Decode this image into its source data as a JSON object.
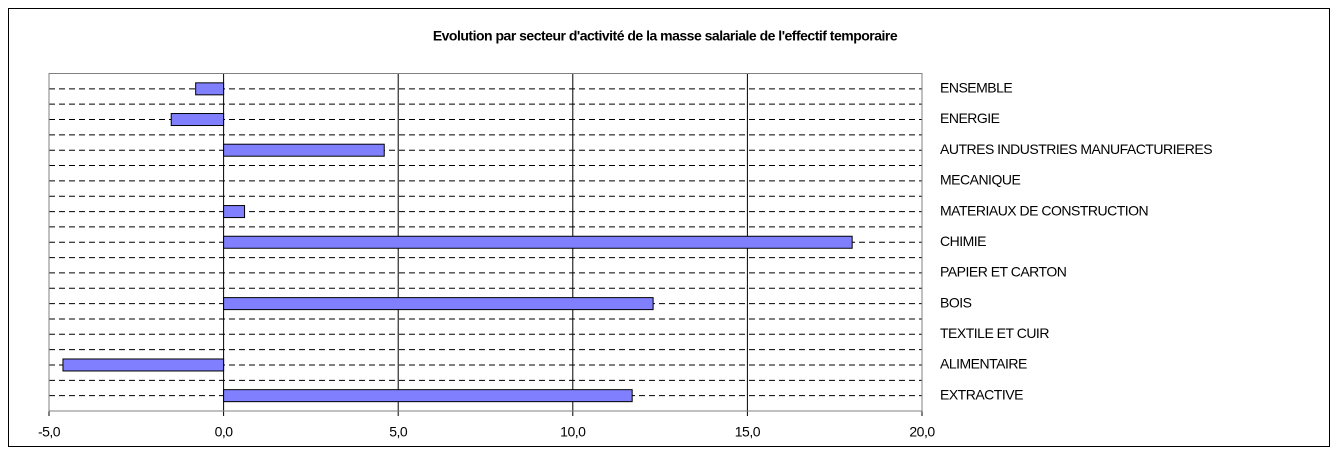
{
  "chart_data": {
    "type": "barh",
    "title": "Evolution par secteur d'activité de la masse salariale de l'effectif temporaire",
    "categories": [
      "ENSEMBLE",
      "ENERGIE",
      "AUTRES INDUSTRIES MANUFACTURIERES",
      "MECANIQUE",
      "MATERIAUX DE CONSTRUCTION",
      "CHIMIE",
      "PAPIER ET CARTON",
      "BOIS",
      "TEXTILE ET CUIR",
      "ALIMENTAIRE",
      "EXTRACTIVE"
    ],
    "values": [
      -0.8,
      -1.5,
      4.6,
      null,
      0.6,
      18.0,
      null,
      12.3,
      null,
      -4.6,
      11.7
    ],
    "color": "#8080ff",
    "xlim": [
      -5,
      20
    ],
    "xticks": [
      {
        "value": -5,
        "label": "-5,0"
      },
      {
        "value": 0,
        "label": "0,0"
      },
      {
        "value": 5,
        "label": "5,0"
      },
      {
        "value": 10,
        "label": "10,0"
      },
      {
        "value": 15,
        "label": "15,0"
      },
      {
        "value": 20,
        "label": "20,0"
      }
    ],
    "grid": true
  }
}
